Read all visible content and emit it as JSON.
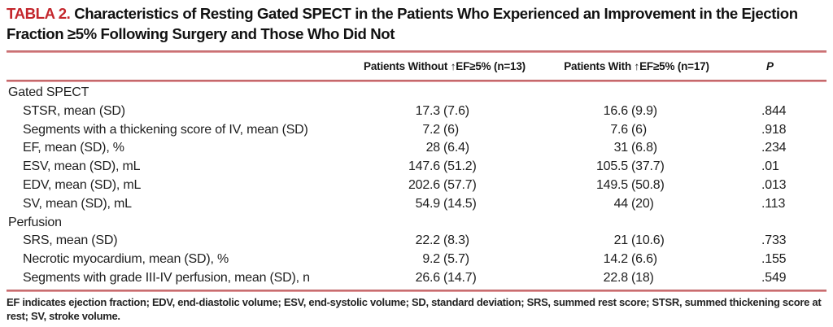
{
  "title": {
    "label": "TABLA 2.",
    "text": "Characteristics of Resting Gated SPECT in the Patients Who Experienced an Improvement in the Ejection Fraction ≥5% Following Surgery and Those Who Did Not"
  },
  "columns": {
    "without": "Patients Without ↑EF≥5% (n=13)",
    "with": "Patients With ↑EF≥5% (n=17)",
    "p": "P"
  },
  "rows": [
    {
      "type": "section",
      "label": "Gated SPECT"
    },
    {
      "type": "data",
      "label": "STSR, mean (SD)",
      "without": {
        "mean": "17.3",
        "sd": "(7.6)"
      },
      "with": {
        "mean": "16.6",
        "sd": "(9.9)"
      },
      "p": ".844"
    },
    {
      "type": "data",
      "label": "Segments with a thickening score of IV, mean (SD)",
      "without": {
        "mean": "7.2",
        "sd": "(6)"
      },
      "with": {
        "mean": "7.6",
        "sd": "(6)"
      },
      "p": ".918"
    },
    {
      "type": "data",
      "label": "EF, mean (SD), %",
      "without": {
        "mean": "28",
        "sd": "(6.4)"
      },
      "with": {
        "mean": "31",
        "sd": "(6.8)"
      },
      "p": ".234"
    },
    {
      "type": "data",
      "label": "ESV, mean (SD), mL",
      "without": {
        "mean": "147.6",
        "sd": "(51.2)"
      },
      "with": {
        "mean": "105.5",
        "sd": "(37.7)"
      },
      "p": ".01"
    },
    {
      "type": "data",
      "label": "EDV, mean (SD), mL",
      "without": {
        "mean": "202.6",
        "sd": "(57.7)"
      },
      "with": {
        "mean": "149.5",
        "sd": "(50.8)"
      },
      "p": ".013"
    },
    {
      "type": "data",
      "label": "SV, mean (SD), mL",
      "without": {
        "mean": "54.9",
        "sd": "(14.5)"
      },
      "with": {
        "mean": "44",
        "sd": "(20)"
      },
      "p": ".113"
    },
    {
      "type": "section",
      "label": "Perfusion"
    },
    {
      "type": "data",
      "label": "SRS, mean (SD)",
      "without": {
        "mean": "22.2",
        "sd": "(8.3)"
      },
      "with": {
        "mean": "21",
        "sd": "(10.6)"
      },
      "p": ".733"
    },
    {
      "type": "data",
      "label": "Necrotic myocardium, mean (SD), %",
      "without": {
        "mean": "9.2",
        "sd": "(5.7)"
      },
      "with": {
        "mean": "14.2",
        "sd": "(6.6)"
      },
      "p": ".155"
    },
    {
      "type": "data",
      "label": "Segments with grade III-IV perfusion, mean (SD), n",
      "without": {
        "mean": "26.6",
        "sd": "(14.7)"
      },
      "with": {
        "mean": "22.8",
        "sd": "(18)"
      },
      "p": ".549"
    }
  ],
  "footnote": "EF indicates ejection fraction; EDV, end-diastolic volume; ESV, end-systolic volume; SD, standard deviation; SRS, summed rest score; STSR, summed thickening score at rest; SV, stroke volume.",
  "colors": {
    "accent_red": "#c4262c",
    "rule_red": "#c2595c"
  }
}
